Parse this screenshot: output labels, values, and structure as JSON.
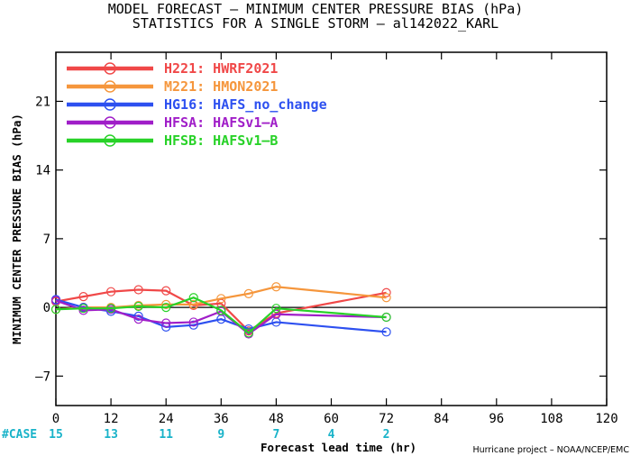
{
  "header": {
    "title": "MODEL FORECAST – MINIMUM CENTER PRESSURE BIAS (hPa)",
    "subtitle": "STATISTICS FOR A SINGLE STORM – al142022_KARL"
  },
  "credit": "Hurricane project – NOAA/NCEP/EMC",
  "chart_data": {
    "type": "line",
    "title": "MODEL FORECAST – MINIMUM CENTER PRESSURE BIAS (hPa)",
    "subtitle": "STATISTICS FOR A SINGLE STORM – al142022_KARL",
    "xlabel": "Forecast lead time (hr)",
    "ylabel": "MINIMUM CENTER PRESSURE BIAS (hPa)",
    "xlim": [
      0,
      120
    ],
    "ylim": [
      -10,
      26
    ],
    "xticks": [
      0,
      12,
      24,
      36,
      48,
      60,
      72,
      84,
      96,
      108,
      120
    ],
    "yticks": [
      -7,
      0,
      7,
      14,
      21
    ],
    "grid": false,
    "legend_position": "top-left",
    "case_label": "#CASE",
    "case_counts": [
      {
        "x": 0,
        "n": "15"
      },
      {
        "x": 12,
        "n": "13"
      },
      {
        "x": 24,
        "n": "11"
      },
      {
        "x": 36,
        "n": "9"
      },
      {
        "x": 48,
        "n": "7"
      },
      {
        "x": 60,
        "n": "4"
      },
      {
        "x": 72,
        "n": "2"
      }
    ],
    "series": [
      {
        "name": "H221: HWRF2021",
        "color": "#f04848",
        "x": [
          0,
          6,
          12,
          18,
          24,
          30,
          36,
          42,
          48,
          72
        ],
        "y": [
          0.6,
          1.1,
          1.6,
          1.8,
          1.7,
          0.2,
          0.4,
          -2.4,
          -0.6,
          1.5
        ]
      },
      {
        "name": "M221: HMON2021",
        "color": "#f5963c",
        "x": [
          0,
          6,
          12,
          18,
          24,
          30,
          36,
          42,
          48,
          72
        ],
        "y": [
          -0.2,
          0.0,
          0.0,
          0.2,
          0.3,
          0.3,
          0.9,
          1.4,
          2.1,
          1.0
        ]
      },
      {
        "name": "HG16: HAFS_no_change",
        "color": "#2d50f0",
        "x": [
          0,
          6,
          12,
          18,
          24,
          30,
          36,
          42,
          48,
          72
        ],
        "y": [
          0.8,
          0.0,
          -0.4,
          -0.9,
          -2.0,
          -1.8,
          -1.2,
          -2.2,
          -1.5,
          -2.5
        ]
      },
      {
        "name": "HFSA: HAFSv1–A",
        "color": "#a01ec8",
        "x": [
          0,
          6,
          12,
          18,
          24,
          30,
          36,
          42,
          48,
          72
        ],
        "y": [
          0.7,
          -0.3,
          -0.2,
          -1.2,
          -1.6,
          -1.5,
          -0.4,
          -2.7,
          -0.7,
          -1.0
        ]
      },
      {
        "name": "HFSB: HAFSv1–B",
        "color": "#28d228",
        "x": [
          0,
          6,
          12,
          18,
          24,
          30,
          36,
          42,
          48,
          72
        ],
        "y": [
          -0.2,
          -0.1,
          -0.1,
          0.1,
          0.0,
          1.0,
          -0.3,
          -2.6,
          -0.1,
          -1.0
        ]
      }
    ]
  }
}
